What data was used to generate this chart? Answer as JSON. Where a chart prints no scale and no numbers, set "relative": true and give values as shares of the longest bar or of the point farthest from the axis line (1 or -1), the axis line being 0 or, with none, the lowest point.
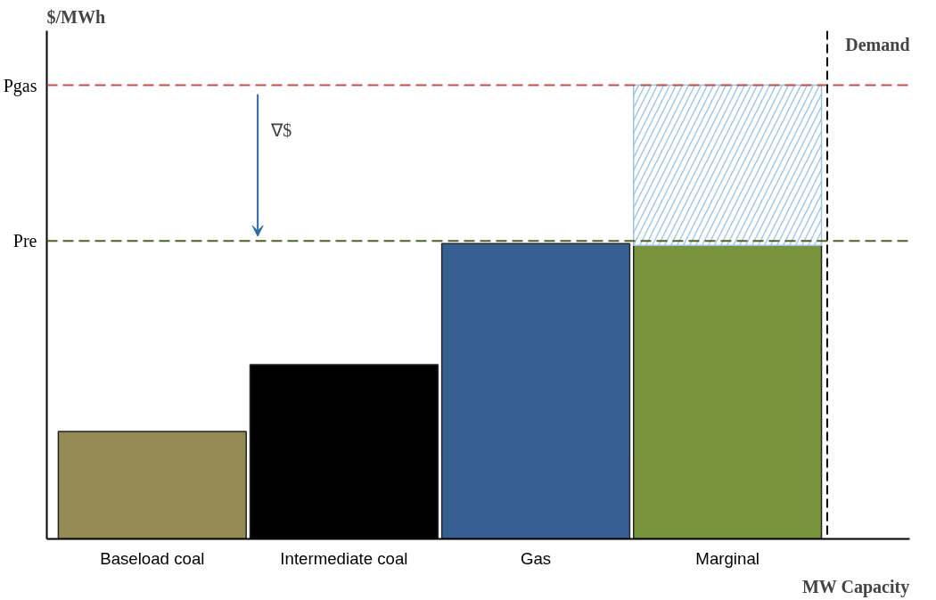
{
  "chart_data": {
    "type": "bar",
    "relative": true,
    "stacked": true,
    "xlabel": "MW Capacity",
    "ylabel": "$/MWh",
    "categories": [
      "Baseload coal",
      "Intermediate coal",
      "Gas",
      "Marginal"
    ],
    "series": [
      {
        "colors": [
          "#948a54",
          "#000000",
          "#376092",
          "#77933c"
        ],
        "values": [
          0.237,
          0.384,
          0.651,
          0.647
        ]
      },
      {
        "color": "#9dc3e6",
        "values": [
          null,
          null,
          null,
          0.353
        ]
      }
    ],
    "ref_lines": [
      {
        "axis": "y",
        "value": 1.0,
        "label": "Pgas",
        "color": "#c0504d",
        "line_style": "dashed"
      },
      {
        "axis": "y",
        "value": 0.657,
        "label": "Pre",
        "color": "#4f6228",
        "line_style": "dashed"
      }
    ],
    "annotations": [
      "∇$",
      "Demand"
    ],
    "grid": false
  }
}
